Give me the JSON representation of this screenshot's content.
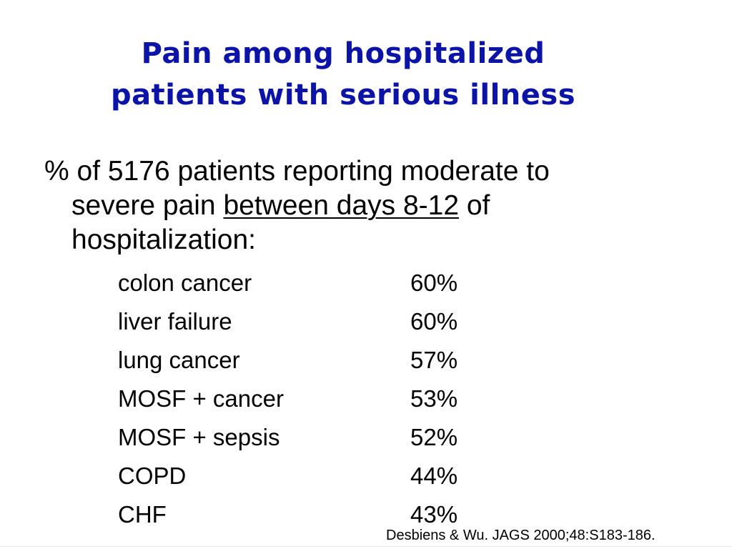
{
  "title": {
    "line1": "Pain among hospitalized",
    "line2": "patients with serious illness"
  },
  "intro": {
    "line1": "% of 5176 patients reporting moderate to",
    "line2_before": "severe pain ",
    "line2_underlined": "between days 8-12",
    "line2_after": " of",
    "line3": "hospitalization:"
  },
  "rows": [
    {
      "condition": "colon cancer",
      "percent": "60%"
    },
    {
      "condition": "liver failure",
      "percent": "60%"
    },
    {
      "condition": "lung cancer",
      "percent": "57%"
    },
    {
      "condition": "MOSF + cancer",
      "percent": "53%"
    },
    {
      "condition": "MOSF + sepsis",
      "percent": "52%"
    },
    {
      "condition": "COPD",
      "percent": "44%"
    },
    {
      "condition": "CHF",
      "percent": "43%"
    }
  ],
  "citation": "Desbiens & Wu. JAGS 2000;48:S183-186.",
  "colors": {
    "title": "#0b14a6",
    "text": "#000000",
    "background": "#ffffff"
  }
}
